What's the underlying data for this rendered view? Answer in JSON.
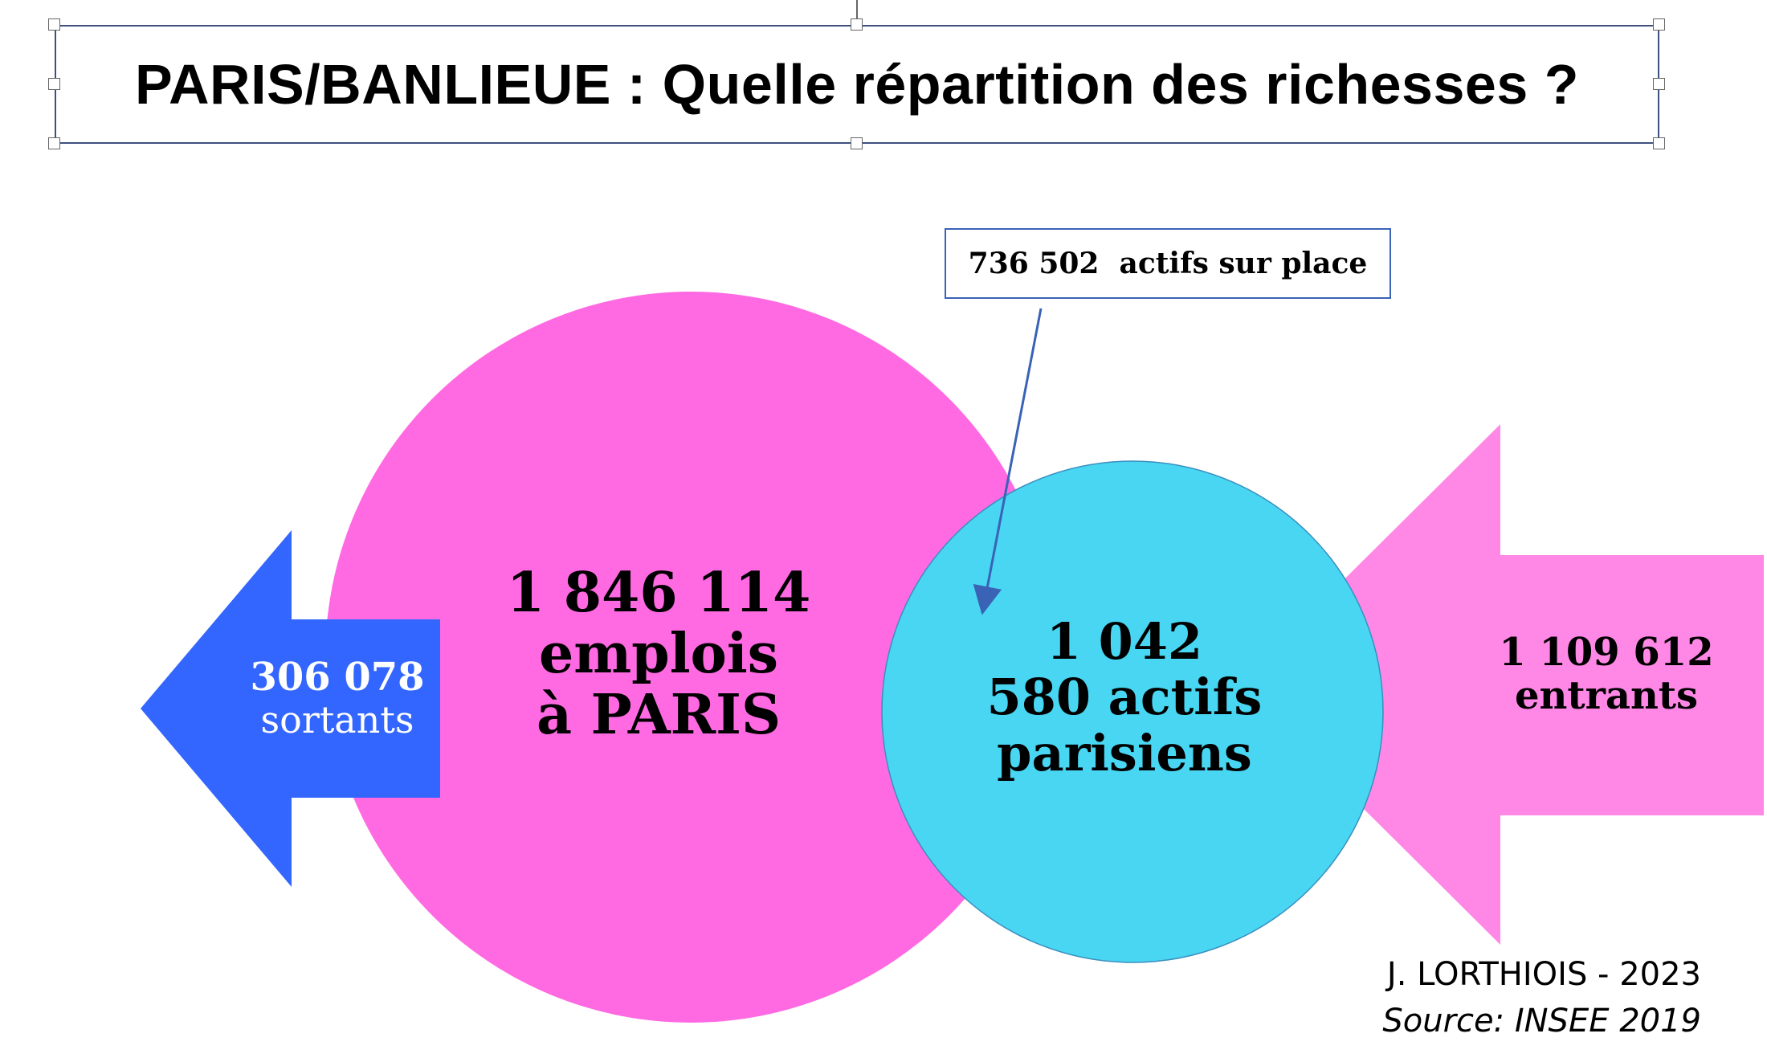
{
  "title": "PARIS/BANLIEUE : Quelle répartition des richesses ?",
  "colors": {
    "jobs_circle": "#ff6ae3",
    "residents_circle": "#48d6f2",
    "outgoing_arrow": "#3366ff",
    "incoming_arrow": "#ff88e6",
    "callout_border": "#3a62b5"
  },
  "jobs": {
    "line1": "1 846 114",
    "line2": "emplois",
    "line3": "à PARIS"
  },
  "residents": {
    "line1": "1 042",
    "line2": "580 actifs",
    "line3": "parisiens"
  },
  "outgoing": {
    "value": "306 078",
    "label": "sortants"
  },
  "incoming": {
    "value": "1 109 612",
    "label": "entrants"
  },
  "callout": {
    "text": "736 502  actifs sur place"
  },
  "credit": {
    "author": "J. LORTHIOIS - 2023",
    "source": "Source: INSEE 2019"
  }
}
